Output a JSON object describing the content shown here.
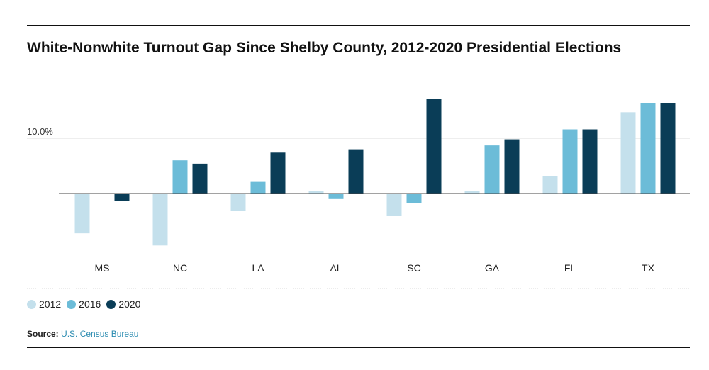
{
  "title": "White-Nonwhite Turnout Gap Since Shelby County, 2012-2020 Presidential Elections",
  "legend": [
    {
      "label": "2012",
      "color": "#c4e0ec"
    },
    {
      "label": "2016",
      "color": "#6cbcd8"
    },
    {
      "label": "2020",
      "color": "#0a3d57"
    }
  ],
  "source": {
    "label": "Source:",
    "text": "U.S. Census Bureau"
  },
  "chart_data": {
    "type": "bar",
    "categories": [
      "MS",
      "NC",
      "LA",
      "AL",
      "SC",
      "GA",
      "FL",
      "TX"
    ],
    "series": [
      {
        "name": "2012",
        "values": [
          -7.2,
          -9.4,
          -3.1,
          0.4,
          -4.1,
          0.4,
          3.2,
          14.7
        ]
      },
      {
        "name": "2016",
        "values": [
          0,
          6.0,
          2.1,
          -1.0,
          -1.7,
          8.7,
          11.6,
          16.4
        ]
      },
      {
        "name": "2020",
        "values": [
          -1.3,
          5.4,
          7.4,
          8.0,
          17.1,
          9.8,
          11.6,
          16.4
        ]
      }
    ],
    "yticks": [
      10
    ],
    "yticklabels": [
      "10.0%"
    ],
    "ylim": [
      -10,
      18
    ],
    "grid": true,
    "legend_position": "bottom-left"
  }
}
